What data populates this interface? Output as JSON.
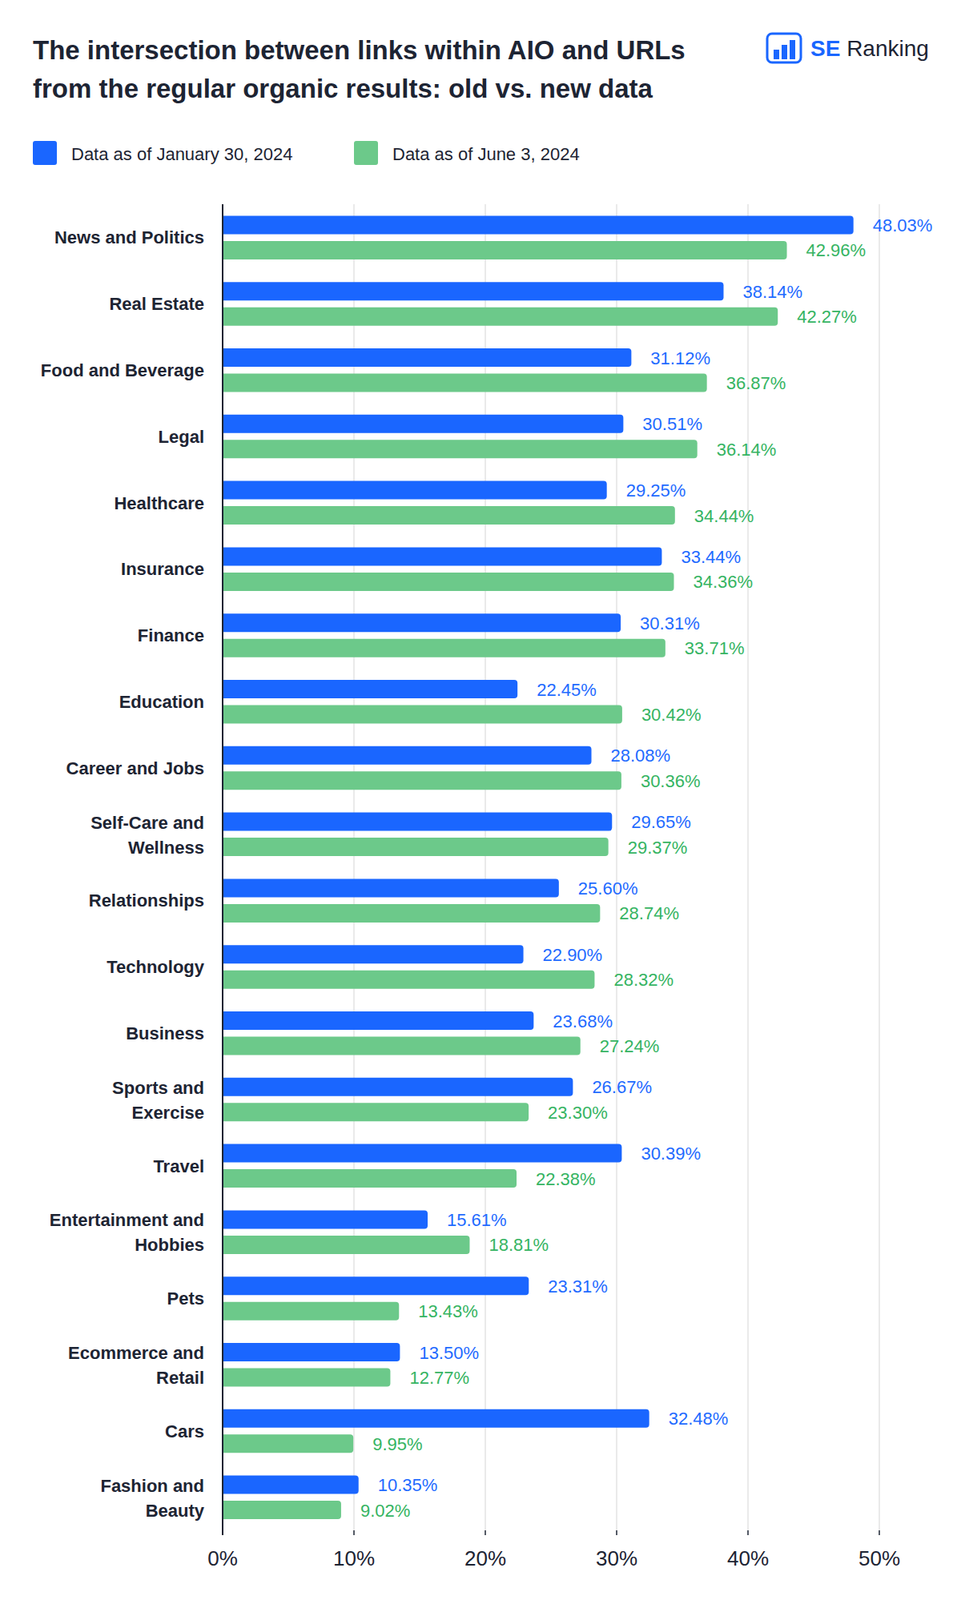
{
  "logo": {
    "text": "SE Ranking"
  },
  "chart_data": {
    "type": "bar",
    "orientation": "horizontal",
    "title": "The intersection between links within AIO and URLs from the regular organic results: old vs. new data",
    "categories": [
      "News and Politics",
      "Real Estate",
      "Food and Beverage",
      "Legal",
      "Healthcare",
      "Insurance",
      "Finance",
      "Education",
      "Career and Jobs",
      "Self-Care and Wellness",
      "Relationships",
      "Technology",
      "Business",
      "Sports and Exercise",
      "Travel",
      "Entertainment and Hobbies",
      "Pets",
      "Ecommerce and Retail",
      "Cars",
      "Fashion and Beauty"
    ],
    "series": [
      {
        "name": "Data as of January 30, 2024",
        "color": "#1a66ff",
        "values": [
          48.03,
          38.14,
          31.12,
          30.51,
          29.25,
          33.44,
          30.31,
          22.45,
          28.08,
          29.65,
          25.6,
          22.9,
          23.68,
          26.67,
          30.39,
          15.61,
          23.31,
          13.5,
          32.48,
          10.35
        ],
        "value_labels": [
          "48.03%",
          "38.14%",
          "31.12%",
          "30.51%",
          "29.25%",
          "33.44%",
          "30.31%",
          "22.45%",
          "28.08%",
          "29.65%",
          "25.60%",
          "22.90%",
          "23.68%",
          "26.67%",
          "30.39%",
          "15.61%",
          "23.31%",
          "13.50%",
          "32.48%",
          "10.35%"
        ]
      },
      {
        "name": "Data as of June 3, 2024",
        "color": "#6cc98a",
        "values": [
          42.96,
          42.27,
          36.87,
          36.14,
          34.44,
          34.36,
          33.71,
          30.42,
          30.36,
          29.37,
          28.74,
          28.32,
          27.24,
          23.3,
          22.38,
          18.81,
          13.43,
          12.77,
          9.95,
          9.02
        ],
        "value_labels": [
          "42.96%",
          "42.27%",
          "36.87%",
          "36.14%",
          "34.44%",
          "34.36%",
          "33.71%",
          "30.42%",
          "30.36%",
          "29.37%",
          "28.74%",
          "28.32%",
          "27.24%",
          "23.30%",
          "22.38%",
          "18.81%",
          "13.43%",
          "12.77%",
          "9.95%",
          "9.02%"
        ]
      }
    ],
    "xlim": [
      0,
      50
    ],
    "xticks": [
      {
        "value": 0,
        "label": "0%"
      },
      {
        "value": 10,
        "label": "10%"
      },
      {
        "value": 20,
        "label": "20%"
      },
      {
        "value": 30,
        "label": "30%"
      },
      {
        "value": 40,
        "label": "40%"
      },
      {
        "value": 50,
        "label": "50%"
      }
    ],
    "grid": true,
    "legend": "top",
    "data_labels": true
  }
}
